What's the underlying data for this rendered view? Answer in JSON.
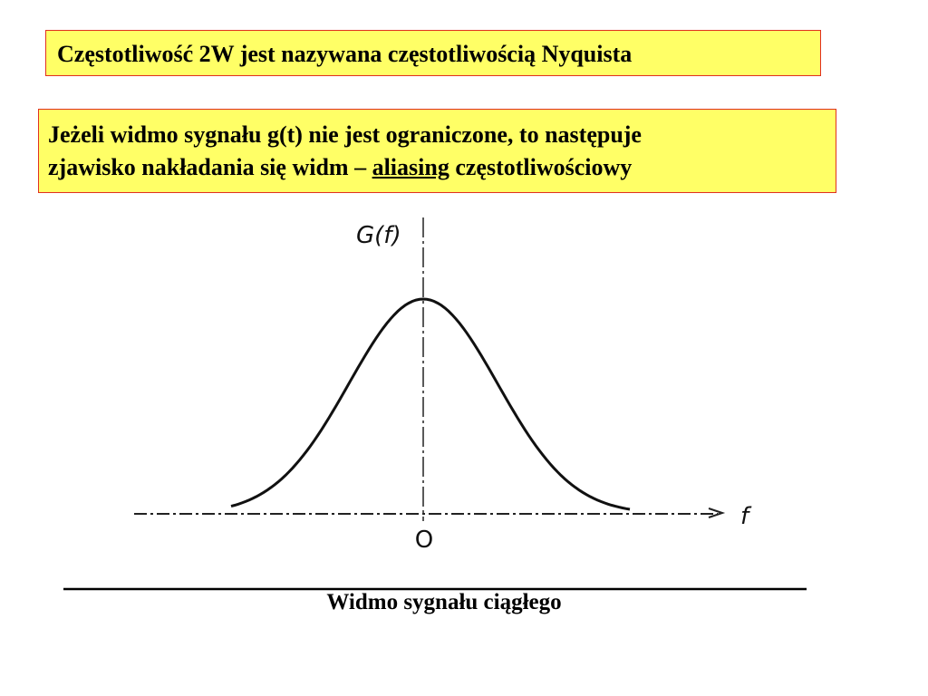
{
  "header": {
    "title": "Częstotliwość 2W jest nazywana częstotliwością Nyquista"
  },
  "note": {
    "line1": "Jeżeli widmo sygnału g(t) nie jest ograniczone, to następuje",
    "line2_before": "zjawisko nakładania się widm –",
    "line2_term": "aliasing",
    "line2_after": "częstotliwościowy"
  },
  "figure": {
    "y_label": "G(f)",
    "x_label": "f",
    "origin_label": "O",
    "caption": "Widmo sygnału ciągłego"
  }
}
